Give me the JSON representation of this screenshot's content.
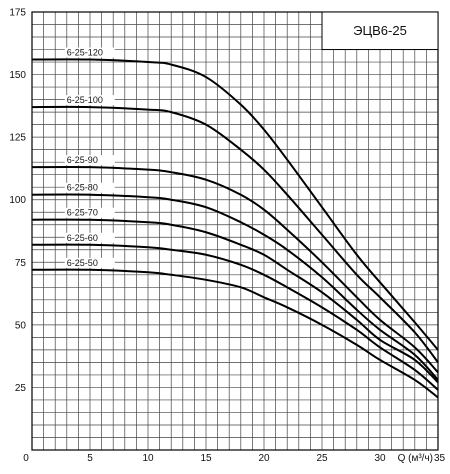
{
  "chart_data": {
    "type": "line",
    "title": "ЭЦВ6-25",
    "xlabel": "Q (м³/ч)",
    "ylabel": "",
    "xlim": [
      0,
      35
    ],
    "ylim": [
      0,
      175
    ],
    "x_ticks": [
      0,
      5,
      10,
      15,
      20,
      25,
      30,
      35
    ],
    "y_ticks": [
      25,
      50,
      75,
      100,
      125,
      150,
      175
    ],
    "grid": true,
    "grid_minor_x": 1,
    "grid_minor_y": 5,
    "series": [
      {
        "name": "6-25-120",
        "x": [
          0,
          5,
          10,
          12,
          15,
          18,
          20,
          22,
          25,
          28,
          30,
          33,
          35
        ],
        "y": [
          156,
          156,
          155,
          154,
          149,
          138,
          128,
          116,
          97,
          78,
          67,
          51,
          40
        ]
      },
      {
        "name": "6-25-100",
        "x": [
          0,
          5,
          10,
          12,
          15,
          18,
          20,
          22,
          25,
          28,
          30,
          33,
          35
        ],
        "y": [
          137,
          137,
          136,
          135,
          130,
          120,
          112,
          102,
          86,
          70,
          61,
          47,
          35
        ]
      },
      {
        "name": "6-25-90",
        "x": [
          0,
          5,
          10,
          12,
          15,
          18,
          20,
          22,
          25,
          28,
          30,
          33,
          35
        ],
        "y": [
          113,
          113,
          112,
          111,
          108,
          102,
          96,
          88,
          75,
          61,
          52,
          41,
          31
        ]
      },
      {
        "name": "6-25-80",
        "x": [
          0,
          5,
          10,
          12,
          15,
          18,
          20,
          22,
          25,
          28,
          30,
          33,
          35
        ],
        "y": [
          102,
          102,
          101,
          100,
          97,
          91,
          86,
          80,
          69,
          56,
          48,
          38,
          28
        ]
      },
      {
        "name": "6-25-70",
        "x": [
          0,
          5,
          10,
          12,
          15,
          18,
          20,
          22,
          25,
          28,
          30,
          33,
          35
        ],
        "y": [
          92,
          92,
          91,
          90,
          87,
          82,
          78,
          72,
          63,
          52,
          44,
          36,
          27
        ]
      },
      {
        "name": "6-25-60",
        "x": [
          0,
          5,
          10,
          12,
          15,
          18,
          20,
          22,
          25,
          28,
          30,
          33,
          35
        ],
        "y": [
          82,
          82,
          81,
          80,
          78,
          74,
          70,
          65,
          57,
          48,
          41,
          32,
          24
        ]
      },
      {
        "name": "6-25-50",
        "x": [
          0,
          5,
          10,
          12,
          15,
          18,
          20,
          22,
          25,
          28,
          30,
          33,
          35
        ],
        "y": [
          72,
          72,
          71,
          70,
          68,
          65,
          61,
          57,
          50,
          42,
          36,
          28,
          21
        ]
      }
    ]
  }
}
